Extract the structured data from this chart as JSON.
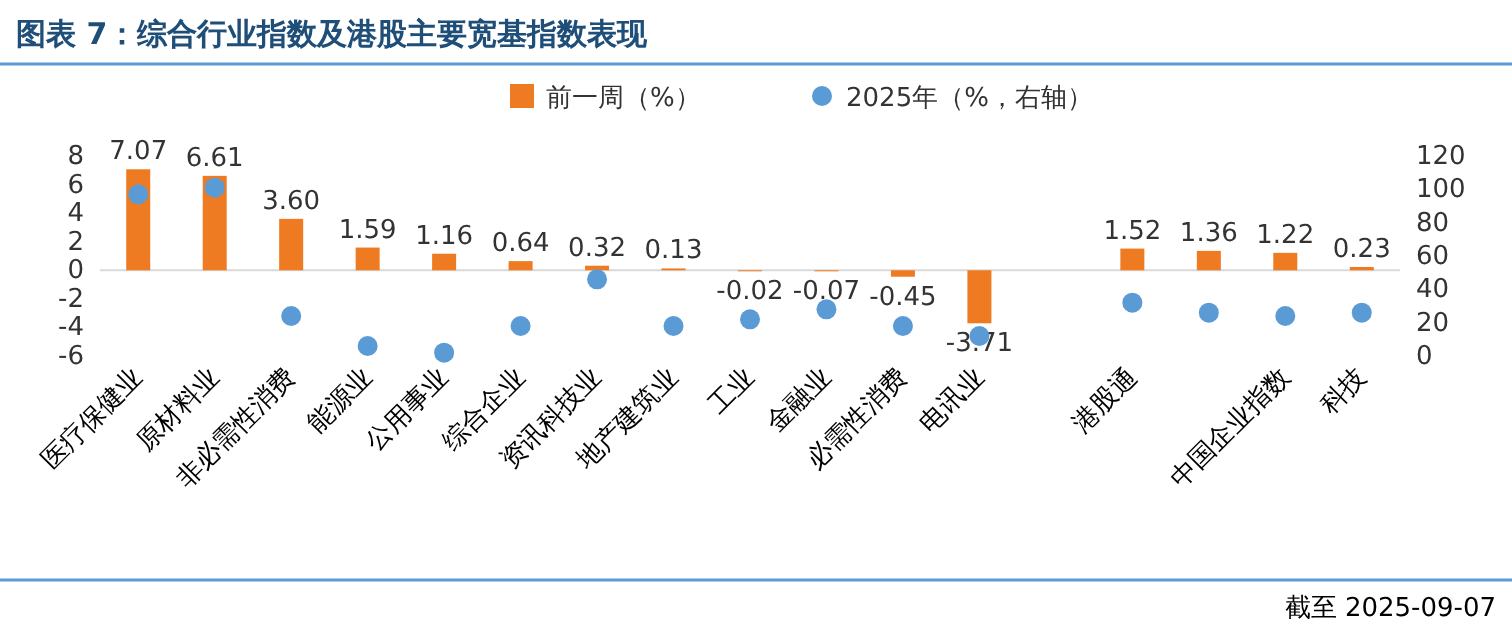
{
  "chart_data": {
    "type": "bar",
    "title": "图表 7：综合行业指数及港股主要宽基指数表现",
    "categories": [
      "医疗保健业",
      "原材料业",
      "非必需性消费",
      "能源业",
      "公用事业",
      "综合企业",
      "资讯科技业",
      "地产建筑业",
      "工业",
      "金融业",
      "必需性消费",
      "电讯业",
      null,
      "港股通",
      null,
      "中国企业指数",
      "科技"
    ],
    "series": [
      {
        "name": "前一周（%）",
        "color": "#ee7b22",
        "values": [
          7.07,
          6.61,
          3.6,
          1.59,
          1.16,
          0.64,
          0.32,
          0.13,
          -0.02,
          -0.07,
          -0.45,
          -3.71,
          null,
          1.52,
          1.36,
          1.22,
          0.23
        ],
        "value_labels": [
          "7.07",
          "6.61",
          "3.60",
          "1.59",
          "1.16",
          "0.64",
          "0.32",
          "0.13",
          "-0.02",
          "-0.07",
          "-0.45",
          "-3.71",
          null,
          "1.52",
          "1.36",
          "1.22",
          "0.23"
        ]
      },
      {
        "name": "2025年（%，右轴）",
        "type": "scatter",
        "axis": "y2",
        "color": "#5b9bd5",
        "marker": "circle",
        "values": [
          97,
          101,
          24,
          6,
          2,
          18,
          46,
          18,
          22,
          28,
          18,
          12,
          null,
          32,
          26,
          24,
          26
        ]
      }
    ],
    "ylim": [
      -6,
      8
    ],
    "yticks": [
      -6,
      -4,
      -2,
      0,
      2,
      4,
      6,
      8
    ],
    "y2lim": [
      0,
      120
    ],
    "y2ticks": [
      0,
      20,
      40,
      60,
      80,
      100,
      120
    ],
    "legend": "top",
    "annotations": [
      "截至 2025-09-07"
    ]
  }
}
